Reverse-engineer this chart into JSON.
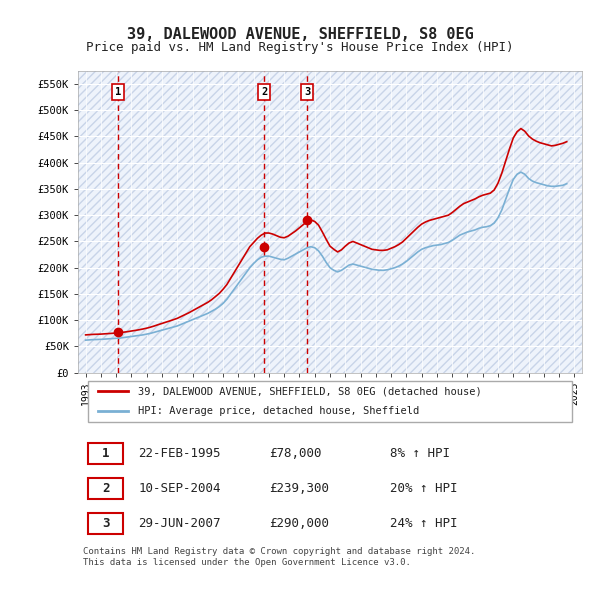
{
  "title": "39, DALEWOOD AVENUE, SHEFFIELD, S8 0EG",
  "subtitle": "Price paid vs. HM Land Registry's House Price Index (HPI)",
  "title_fontsize": 11,
  "subtitle_fontsize": 9,
  "ylabel_fontsize": 9,
  "background_color": "#ffffff",
  "plot_bg_color": "#eef3fb",
  "hatch_color": "#c8d4e8",
  "grid_color": "#ffffff",
  "red_line_color": "#cc0000",
  "blue_line_color": "#7ab0d4",
  "sale_marker_color": "#cc0000",
  "vline_color": "#cc0000",
  "ylim": [
    0,
    575000
  ],
  "yticks": [
    0,
    50000,
    100000,
    150000,
    200000,
    250000,
    300000,
    350000,
    400000,
    450000,
    500000,
    550000
  ],
  "ytick_labels": [
    "£0",
    "£50K",
    "£100K",
    "£150K",
    "£200K",
    "£250K",
    "£300K",
    "£350K",
    "£400K",
    "£450K",
    "£500K",
    "£550K"
  ],
  "sale_dates": [
    1995.13,
    2004.69,
    2007.49
  ],
  "sale_prices": [
    78000,
    239300,
    290000
  ],
  "sale_labels": [
    "1",
    "2",
    "3"
  ],
  "legend_red_label": "39, DALEWOOD AVENUE, SHEFFIELD, S8 0EG (detached house)",
  "legend_blue_label": "HPI: Average price, detached house, Sheffield",
  "table_data": [
    [
      "1",
      "22-FEB-1995",
      "£78,000",
      "8% ↑ HPI"
    ],
    [
      "2",
      "10-SEP-2004",
      "£239,300",
      "20% ↑ HPI"
    ],
    [
      "3",
      "29-JUN-2007",
      "£290,000",
      "24% ↑ HPI"
    ]
  ],
  "footer": "Contains HM Land Registry data © Crown copyright and database right 2024.\nThis data is licensed under the Open Government Licence v3.0.",
  "hpi_dates": [
    1993.0,
    1993.25,
    1993.5,
    1993.75,
    1994.0,
    1994.25,
    1994.5,
    1994.75,
    1995.0,
    1995.25,
    1995.5,
    1995.75,
    1996.0,
    1996.25,
    1996.5,
    1996.75,
    1997.0,
    1997.25,
    1997.5,
    1997.75,
    1998.0,
    1998.25,
    1998.5,
    1998.75,
    1999.0,
    1999.25,
    1999.5,
    1999.75,
    2000.0,
    2000.25,
    2000.5,
    2000.75,
    2001.0,
    2001.25,
    2001.5,
    2001.75,
    2002.0,
    2002.25,
    2002.5,
    2002.75,
    2003.0,
    2003.25,
    2003.5,
    2003.75,
    2004.0,
    2004.25,
    2004.5,
    2004.75,
    2005.0,
    2005.25,
    2005.5,
    2005.75,
    2006.0,
    2006.25,
    2006.5,
    2006.75,
    2007.0,
    2007.25,
    2007.5,
    2007.75,
    2008.0,
    2008.25,
    2008.5,
    2008.75,
    2009.0,
    2009.25,
    2009.5,
    2009.75,
    2010.0,
    2010.25,
    2010.5,
    2010.75,
    2011.0,
    2011.25,
    2011.5,
    2011.75,
    2012.0,
    2012.25,
    2012.5,
    2012.75,
    2013.0,
    2013.25,
    2013.5,
    2013.75,
    2014.0,
    2014.25,
    2014.5,
    2014.75,
    2015.0,
    2015.25,
    2015.5,
    2015.75,
    2016.0,
    2016.25,
    2016.5,
    2016.75,
    2017.0,
    2017.25,
    2017.5,
    2017.75,
    2018.0,
    2018.25,
    2018.5,
    2018.75,
    2019.0,
    2019.25,
    2019.5,
    2019.75,
    2020.0,
    2020.25,
    2020.5,
    2020.75,
    2021.0,
    2021.25,
    2021.5,
    2021.75,
    2022.0,
    2022.25,
    2022.5,
    2022.75,
    2023.0,
    2023.25,
    2023.5,
    2023.75,
    2024.0,
    2024.25,
    2024.5
  ],
  "hpi_values": [
    62000,
    62500,
    63000,
    63200,
    63500,
    64000,
    64500,
    65000,
    65500,
    66000,
    67000,
    68000,
    69000,
    70000,
    71000,
    72000,
    73500,
    75000,
    77000,
    79000,
    81000,
    83000,
    85000,
    87000,
    89000,
    92000,
    95000,
    98000,
    101000,
    104000,
    107000,
    110000,
    113000,
    117000,
    121000,
    126000,
    132000,
    140000,
    150000,
    160000,
    170000,
    180000,
    190000,
    200000,
    208000,
    215000,
    220000,
    222000,
    222000,
    220000,
    218000,
    216000,
    215000,
    218000,
    222000,
    226000,
    230000,
    234000,
    238000,
    240000,
    238000,
    232000,
    222000,
    210000,
    200000,
    195000,
    192000,
    195000,
    200000,
    205000,
    207000,
    205000,
    203000,
    201000,
    199000,
    197000,
    196000,
    195000,
    195000,
    196000,
    198000,
    200000,
    203000,
    207000,
    212000,
    218000,
    224000,
    230000,
    235000,
    238000,
    240000,
    242000,
    243000,
    244000,
    246000,
    248000,
    252000,
    257000,
    262000,
    265000,
    268000,
    270000,
    272000,
    275000,
    277000,
    278000,
    280000,
    285000,
    295000,
    310000,
    330000,
    350000,
    368000,
    378000,
    382000,
    378000,
    370000,
    365000,
    362000,
    360000,
    358000,
    356000,
    355000,
    355000,
    356000,
    357000,
    360000
  ],
  "red_dates": [
    1993.0,
    1993.25,
    1993.5,
    1993.75,
    1994.0,
    1994.25,
    1994.5,
    1994.75,
    1995.0,
    1995.25,
    1995.5,
    1995.75,
    1996.0,
    1996.25,
    1996.5,
    1996.75,
    1997.0,
    1997.25,
    1997.5,
    1997.75,
    1998.0,
    1998.25,
    1998.5,
    1998.75,
    1999.0,
    1999.25,
    1999.5,
    1999.75,
    2000.0,
    2000.25,
    2000.5,
    2000.75,
    2001.0,
    2001.25,
    2001.5,
    2001.75,
    2002.0,
    2002.25,
    2002.5,
    2002.75,
    2003.0,
    2003.25,
    2003.5,
    2003.75,
    2004.0,
    2004.25,
    2004.5,
    2004.75,
    2005.0,
    2005.25,
    2005.5,
    2005.75,
    2006.0,
    2006.25,
    2006.5,
    2006.75,
    2007.0,
    2007.25,
    2007.5,
    2007.75,
    2008.0,
    2008.25,
    2008.5,
    2008.75,
    2009.0,
    2009.25,
    2009.5,
    2009.75,
    2010.0,
    2010.25,
    2010.5,
    2010.75,
    2011.0,
    2011.25,
    2011.5,
    2011.75,
    2012.0,
    2012.25,
    2012.5,
    2012.75,
    2013.0,
    2013.25,
    2013.5,
    2013.75,
    2014.0,
    2014.25,
    2014.5,
    2014.75,
    2015.0,
    2015.25,
    2015.5,
    2015.75,
    2016.0,
    2016.25,
    2016.5,
    2016.75,
    2017.0,
    2017.25,
    2017.5,
    2017.75,
    2018.0,
    2018.25,
    2018.5,
    2018.75,
    2019.0,
    2019.25,
    2019.5,
    2019.75,
    2020.0,
    2020.25,
    2020.5,
    2020.75,
    2021.0,
    2021.25,
    2021.5,
    2021.75,
    2022.0,
    2022.25,
    2022.5,
    2022.75,
    2023.0,
    2023.25,
    2023.5,
    2023.75,
    2024.0,
    2024.25,
    2024.5
  ],
  "red_values": [
    72000,
    72500,
    73000,
    73200,
    73500,
    74000,
    74500,
    75000,
    75500,
    76000,
    77200,
    78200,
    79400,
    80500,
    81800,
    83200,
    84800,
    86800,
    89000,
    91500,
    93800,
    96200,
    98500,
    101000,
    103500,
    107000,
    110500,
    114000,
    118000,
    122000,
    126000,
    130000,
    134000,
    139000,
    145000,
    151000,
    159000,
    168000,
    180000,
    192000,
    204000,
    216000,
    228000,
    240000,
    248000,
    256000,
    262000,
    266000,
    266000,
    264000,
    261000,
    258000,
    257000,
    260000,
    265000,
    270000,
    276000,
    282000,
    288000,
    291000,
    288000,
    281000,
    268000,
    254000,
    241000,
    235000,
    230000,
    234000,
    241000,
    247000,
    250000,
    247000,
    244000,
    241000,
    238000,
    235000,
    234000,
    233000,
    233000,
    234000,
    237000,
    240000,
    244000,
    249000,
    256000,
    263000,
    270000,
    277000,
    283000,
    287000,
    290000,
    292000,
    294000,
    296000,
    298000,
    300000,
    305000,
    311000,
    317000,
    322000,
    325000,
    328000,
    331000,
    335000,
    338000,
    340000,
    342000,
    348000,
    361000,
    380000,
    403000,
    426000,
    447000,
    459000,
    465000,
    460000,
    451000,
    445000,
    441000,
    438000,
    436000,
    434000,
    432000,
    433000,
    435000,
    437000,
    440000
  ]
}
